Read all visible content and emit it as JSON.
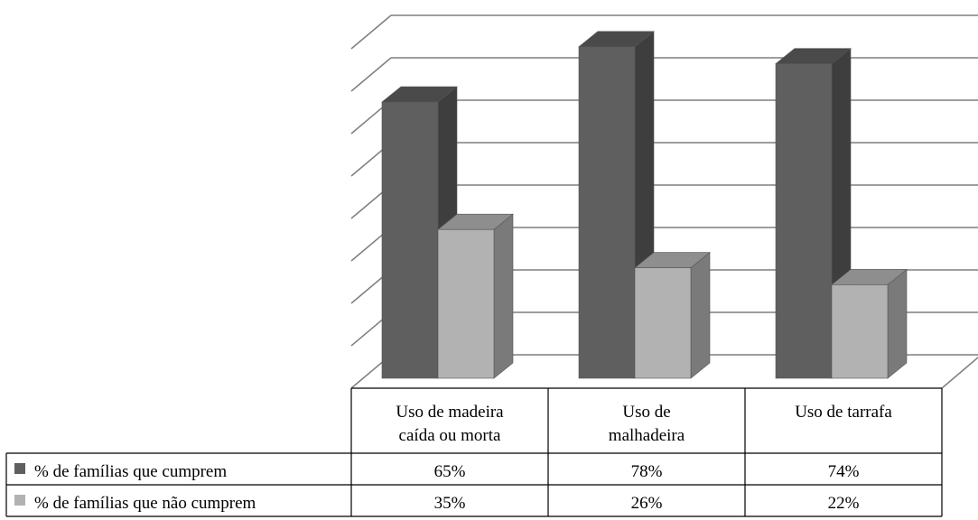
{
  "chart_data": {
    "type": "bar",
    "title": "",
    "xlabel": "",
    "ylabel": "",
    "ylim": [
      0,
      80
    ],
    "grid": true,
    "legend": "data-table-left",
    "categories": [
      [
        "Uso de madeira",
        "caída ou morta"
      ],
      [
        "Uso de",
        "malhadeira"
      ],
      [
        "Uso de tarrafa"
      ]
    ],
    "series": [
      {
        "name": "% de famílias que cumprem",
        "values": [
          65,
          78,
          74
        ],
        "labels": [
          "65%",
          "78%",
          "74%"
        ],
        "color": "#5f5f5f",
        "color_side": "#3e3e3e",
        "color_top": "#4a4a4a"
      },
      {
        "name": "% de famílias que não cumprem",
        "values": [
          35,
          26,
          22
        ],
        "labels": [
          "35%",
          "26%",
          "22%"
        ],
        "color": "#b2b2b2",
        "color_side": "#7a7a7a",
        "color_top": "#8e8e8e"
      }
    ]
  }
}
